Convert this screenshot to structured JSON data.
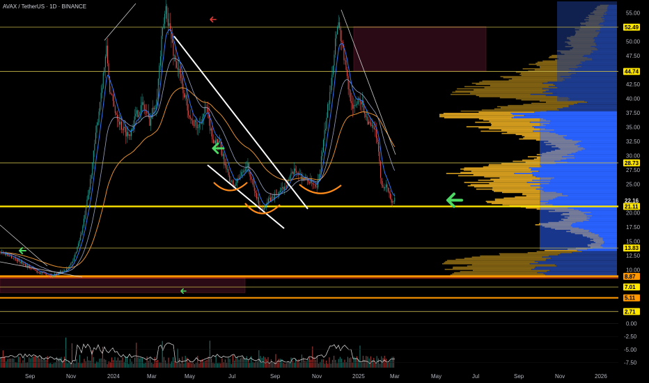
{
  "header": {
    "symbol": "AVAX / TetherUS",
    "interval": "1D",
    "exchange": "BINANCE",
    "separator": " · "
  },
  "colors": {
    "background": "#000000",
    "hline": "#c8b84a",
    "support_main": "#ffe600",
    "orange_line": "#ff9800",
    "vp_value_area": "#2962ff",
    "vp_outside": "#1e3c8f",
    "vp_gold": "#d4a017",
    "zone": "#2a0a14",
    "white_line": "#ffffff",
    "ema_fast": "#3179f5",
    "ema_slow": "#e6912f",
    "price_arrow_green": "#4cd964",
    "price_arrow_red": "#e53935",
    "curve_orange": "#ff8c1a"
  },
  "chart_data": {
    "type": "candlestick",
    "title": "AVAX / TetherUS · 1D · BINANCE",
    "price_axis": {
      "range": [
        3,
        57
      ],
      "ticks": [
        "55.00",
        "50.00",
        "47.50",
        "42.50",
        "40.00",
        "37.50",
        "35.00",
        "32.50",
        "30.00",
        "27.50",
        "25.00",
        "20.00",
        "17.50",
        "15.00",
        "12.50",
        "10.00"
      ]
    },
    "price_labels": [
      {
        "value": 52.49,
        "text": "52.49",
        "style": "yellow"
      },
      {
        "value": 44.74,
        "text": "44.74",
        "style": "yellow"
      },
      {
        "value": 28.73,
        "text": "28.73",
        "style": "yellow"
      },
      {
        "value": 22.16,
        "text": "22.16",
        "style": "current"
      },
      {
        "value": 21.11,
        "text": "21.11",
        "style": "yellow"
      },
      {
        "value": 13.83,
        "text": "13.83",
        "style": "yellow"
      },
      {
        "value": 8.87,
        "text": "8.87",
        "style": "orange"
      },
      {
        "value": 7.01,
        "text": "7.01",
        "style": "yellow"
      },
      {
        "value": 5.11,
        "text": "5.11",
        "style": "orange"
      },
      {
        "value": 2.71,
        "text": "2.71",
        "style": "yellow"
      }
    ],
    "current_price": 22.16,
    "horizontal_levels": [
      52.49,
      44.74,
      28.73,
      21.11,
      13.83,
      8.87,
      7.01,
      5.11,
      2.71
    ],
    "oscillator_axis": {
      "range": [
        -8.5,
        2.2
      ],
      "ticks": [
        "0.00",
        "-2.50",
        "-5.00",
        "-7.50"
      ]
    },
    "time_axis": [
      "Sep",
      "Nov",
      "2024",
      "Mar",
      "May",
      "Jul",
      "Sep",
      "Nov",
      "2025",
      "Mar",
      "May",
      "Jul",
      "Sep",
      "Nov",
      "2026"
    ],
    "price_path": [
      [
        0,
        13.2
      ],
      [
        15,
        12.4
      ],
      [
        35,
        11.0
      ],
      [
        55,
        9.6
      ],
      [
        75,
        9.0
      ],
      [
        92,
        9.8
      ],
      [
        105,
        11.5
      ],
      [
        118,
        17.0
      ],
      [
        128,
        24.0
      ],
      [
        140,
        36.0
      ],
      [
        148,
        44.0
      ],
      [
        153,
        48.5
      ],
      [
        158,
        41.0
      ],
      [
        165,
        38.0
      ],
      [
        175,
        35.0
      ],
      [
        185,
        33.5
      ],
      [
        195,
        37.0
      ],
      [
        205,
        39.0
      ],
      [
        215,
        36.0
      ],
      [
        225,
        40.0
      ],
      [
        232,
        50.0
      ],
      [
        238,
        56.0
      ],
      [
        244,
        52.0
      ],
      [
        250,
        47.5
      ],
      [
        258,
        44.0
      ],
      [
        266,
        40.0
      ],
      [
        275,
        36.0
      ],
      [
        285,
        35.0
      ],
      [
        296,
        38.5
      ],
      [
        305,
        33.0
      ],
      [
        315,
        32.0
      ],
      [
        325,
        27.5
      ],
      [
        335,
        24.5
      ],
      [
        345,
        26.5
      ],
      [
        355,
        28.5
      ],
      [
        365,
        24.0
      ],
      [
        375,
        20.5
      ],
      [
        385,
        22.0
      ],
      [
        395,
        23.0
      ],
      [
        405,
        24.0
      ],
      [
        415,
        26.0
      ],
      [
        425,
        27.5
      ],
      [
        435,
        26.0
      ],
      [
        445,
        25.5
      ],
      [
        455,
        24.0
      ],
      [
        462,
        30.0
      ],
      [
        470,
        37.5
      ],
      [
        478,
        46.0
      ],
      [
        485,
        54.0
      ],
      [
        492,
        49.0
      ],
      [
        500,
        42.0
      ],
      [
        508,
        38.0
      ],
      [
        516,
        40.5
      ],
      [
        524,
        37.5
      ],
      [
        532,
        35.0
      ],
      [
        540,
        34.0
      ],
      [
        548,
        25.0
      ],
      [
        556,
        24.5
      ],
      [
        562,
        22.0
      ],
      [
        567,
        22.16
      ]
    ],
    "emas": [
      {
        "name": "EMA fast",
        "color": "#3179f5",
        "period": 8
      },
      {
        "name": "EMA slow",
        "color": "#e6912f",
        "period": 60
      }
    ],
    "volume_profile": {
      "right_anchored": true,
      "value_area": [
        13.5,
        37.8
      ],
      "rows": [
        [
          56.5,
          0.1
        ],
        [
          55,
          0.14
        ],
        [
          53,
          0.2
        ],
        [
          51,
          0.26
        ],
        [
          49,
          0.28
        ],
        [
          47.5,
          0.35
        ],
        [
          45,
          0.55
        ],
        [
          43,
          0.72
        ],
        [
          41,
          0.92
        ],
        [
          39.5,
          0.4
        ],
        [
          38,
          0.85
        ],
        [
          37,
          1.0
        ],
        [
          36,
          0.8
        ],
        [
          34.5,
          0.75
        ],
        [
          33,
          0.5
        ],
        [
          31.5,
          0.32
        ],
        [
          30,
          0.45
        ],
        [
          29,
          0.55
        ],
        [
          28,
          0.8
        ],
        [
          27,
          0.9
        ],
        [
          26,
          0.75
        ],
        [
          25,
          0.82
        ],
        [
          24,
          0.7
        ],
        [
          23,
          0.55
        ],
        [
          22,
          0.72
        ],
        [
          21,
          0.5
        ],
        [
          20,
          0.28
        ],
        [
          19,
          0.32
        ],
        [
          18,
          0.45
        ],
        [
          17,
          0.3
        ],
        [
          16,
          0.2
        ],
        [
          15,
          0.12
        ],
        [
          14,
          0.18
        ],
        [
          13,
          0.6
        ],
        [
          12,
          0.88
        ],
        [
          11,
          0.95
        ],
        [
          10,
          0.9
        ],
        [
          9,
          0.98
        ],
        [
          8.9,
          1.0
        ]
      ]
    }
  }
}
